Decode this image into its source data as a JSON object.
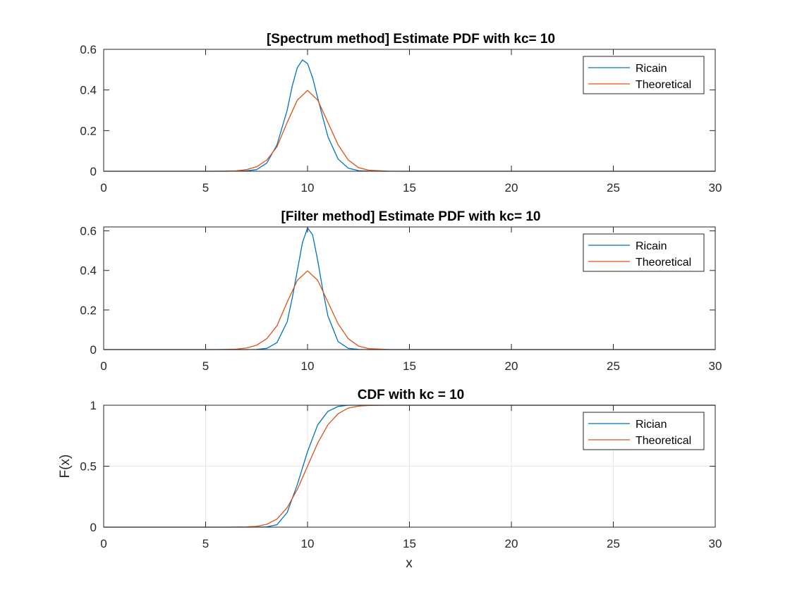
{
  "figure": {
    "xlabel": "x"
  },
  "chart_data": [
    {
      "type": "line",
      "title": "[Spectrum method] Estimate PDF with kc= 10",
      "xlabel": "",
      "ylabel": "",
      "xlim": [
        0,
        30
      ],
      "ylim": [
        0,
        0.6
      ],
      "xticks": [
        0,
        5,
        10,
        15,
        20,
        25,
        30
      ],
      "yticks": [
        0,
        0.2,
        0.4,
        0.6
      ],
      "ytick_labels": [
        "0",
        "0.2",
        "0.4",
        "0.6"
      ],
      "grid": false,
      "legend_position": "top-right",
      "series": [
        {
          "name": "Ricain",
          "color": "#0072BD",
          "x": [
            0,
            6,
            7,
            7.5,
            8,
            8.5,
            9,
            9.25,
            9.5,
            9.75,
            10,
            10.25,
            10.5,
            11,
            11.5,
            12,
            12.5,
            13,
            14,
            30
          ],
          "y": [
            0,
            0.0,
            0.002,
            0.008,
            0.04,
            0.13,
            0.3,
            0.42,
            0.51,
            0.548,
            0.53,
            0.46,
            0.36,
            0.17,
            0.06,
            0.015,
            0.003,
            0.0005,
            0,
            0
          ]
        },
        {
          "name": "Theoretical",
          "color": "#D95319",
          "x": [
            0,
            5.5,
            6.5,
            7,
            7.5,
            8,
            8.5,
            9,
            9.5,
            10,
            10.5,
            11,
            11.5,
            12,
            12.5,
            13,
            14,
            15,
            30
          ],
          "y": [
            0,
            0.0,
            0.002,
            0.008,
            0.022,
            0.055,
            0.12,
            0.24,
            0.35,
            0.398,
            0.35,
            0.24,
            0.13,
            0.055,
            0.018,
            0.005,
            0.0003,
            0,
            0
          ]
        }
      ]
    },
    {
      "type": "line",
      "title": "[Filter method] Estimate PDF with kc= 10",
      "xlabel": "",
      "ylabel": "",
      "xlim": [
        0,
        30
      ],
      "ylim": [
        0,
        0.62
      ],
      "xticks": [
        0,
        5,
        10,
        15,
        20,
        25,
        30
      ],
      "yticks": [
        0,
        0.2,
        0.4,
        0.6
      ],
      "ytick_labels": [
        "0",
        "0.2",
        "0.4",
        "0.6"
      ],
      "grid": false,
      "legend_position": "top-right",
      "series": [
        {
          "name": "Ricain",
          "color": "#0072BD",
          "x": [
            0,
            7,
            7.5,
            8,
            8.5,
            9,
            9.25,
            9.5,
            9.75,
            10,
            10.25,
            10.5,
            10.75,
            11,
            11.5,
            12,
            12.5,
            13,
            30
          ],
          "y": [
            0,
            0,
            0.001,
            0.006,
            0.035,
            0.14,
            0.26,
            0.4,
            0.54,
            0.615,
            0.58,
            0.45,
            0.3,
            0.17,
            0.04,
            0.006,
            0.001,
            0,
            0
          ]
        },
        {
          "name": "Theoretical",
          "color": "#D95319",
          "x": [
            0,
            5.5,
            6.5,
            7,
            7.5,
            8,
            8.5,
            9,
            9.5,
            10,
            10.5,
            11,
            11.5,
            12,
            12.5,
            13,
            14,
            15,
            30
          ],
          "y": [
            0,
            0.0,
            0.002,
            0.008,
            0.022,
            0.055,
            0.12,
            0.24,
            0.35,
            0.398,
            0.35,
            0.24,
            0.13,
            0.055,
            0.018,
            0.005,
            0.0003,
            0,
            0
          ]
        }
      ]
    },
    {
      "type": "line",
      "title": "CDF with kc = 10",
      "xlabel": "x",
      "ylabel": "F(x)",
      "xlim": [
        0,
        30
      ],
      "ylim": [
        0,
        1
      ],
      "xticks": [
        0,
        5,
        10,
        15,
        20,
        25,
        30
      ],
      "yticks": [
        0,
        0.5,
        1
      ],
      "ytick_labels": [
        "0",
        "0.5",
        "1"
      ],
      "grid": true,
      "legend_position": "top-right",
      "series": [
        {
          "name": "Rician",
          "color": "#0072BD",
          "x": [
            0,
            7,
            8,
            8.5,
            9,
            9.5,
            10,
            10.5,
            11,
            11.5,
            12,
            12.5,
            13,
            30
          ],
          "y": [
            0,
            0,
            0.002,
            0.02,
            0.12,
            0.35,
            0.62,
            0.84,
            0.95,
            0.99,
            1,
            1,
            1,
            1
          ]
        },
        {
          "name": "Theoretical",
          "color": "#D95319",
          "x": [
            0,
            6,
            7,
            7.5,
            8,
            8.5,
            9,
            9.5,
            10,
            10.5,
            11,
            11.5,
            12,
            12.5,
            13,
            14,
            30
          ],
          "y": [
            0,
            0,
            0.002,
            0.007,
            0.023,
            0.067,
            0.16,
            0.31,
            0.5,
            0.69,
            0.84,
            0.93,
            0.977,
            0.993,
            0.998,
            1,
            1
          ]
        }
      ]
    }
  ]
}
